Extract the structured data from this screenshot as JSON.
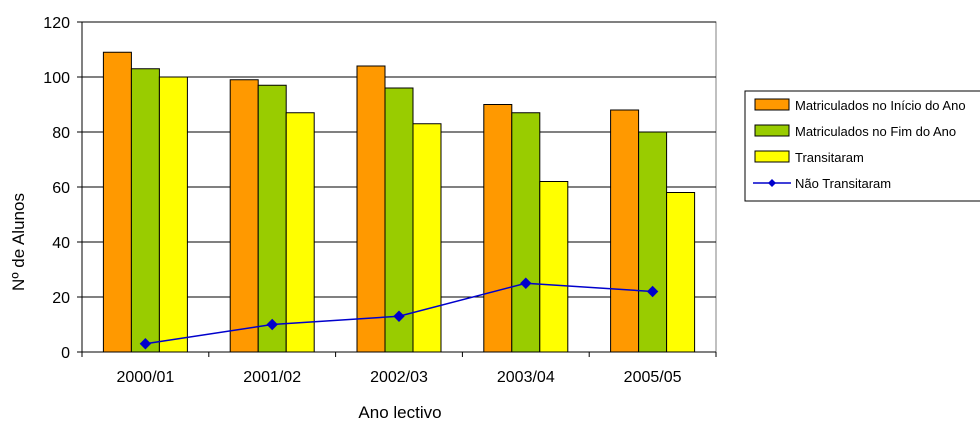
{
  "chart_data": {
    "type": "bar",
    "title": "",
    "xlabel": "Ano lectivo",
    "ylabel": "Nº de Alunos",
    "ylim": [
      0,
      120
    ],
    "yticks": [
      0,
      20,
      40,
      60,
      80,
      100,
      120
    ],
    "grid": true,
    "legend_position": "right",
    "categories": [
      "2000/01",
      "2001/02",
      "2002/03",
      "2003/04",
      "2005/05"
    ],
    "series": [
      {
        "name": "Matriculados no Início do Ano",
        "type": "bar",
        "color": "#FF9900",
        "values": [
          109,
          99,
          104,
          90,
          88
        ]
      },
      {
        "name": "Matriculados no Fim do Ano",
        "type": "bar",
        "color": "#99CC00",
        "values": [
          103,
          97,
          96,
          87,
          80
        ]
      },
      {
        "name": "Transitaram",
        "type": "bar",
        "color": "#FFFF00",
        "values": [
          100,
          87,
          83,
          62,
          58
        ]
      },
      {
        "name": "Não Transitaram",
        "type": "line",
        "color": "#0000CC",
        "values": [
          3,
          10,
          13,
          25,
          22
        ]
      }
    ]
  }
}
